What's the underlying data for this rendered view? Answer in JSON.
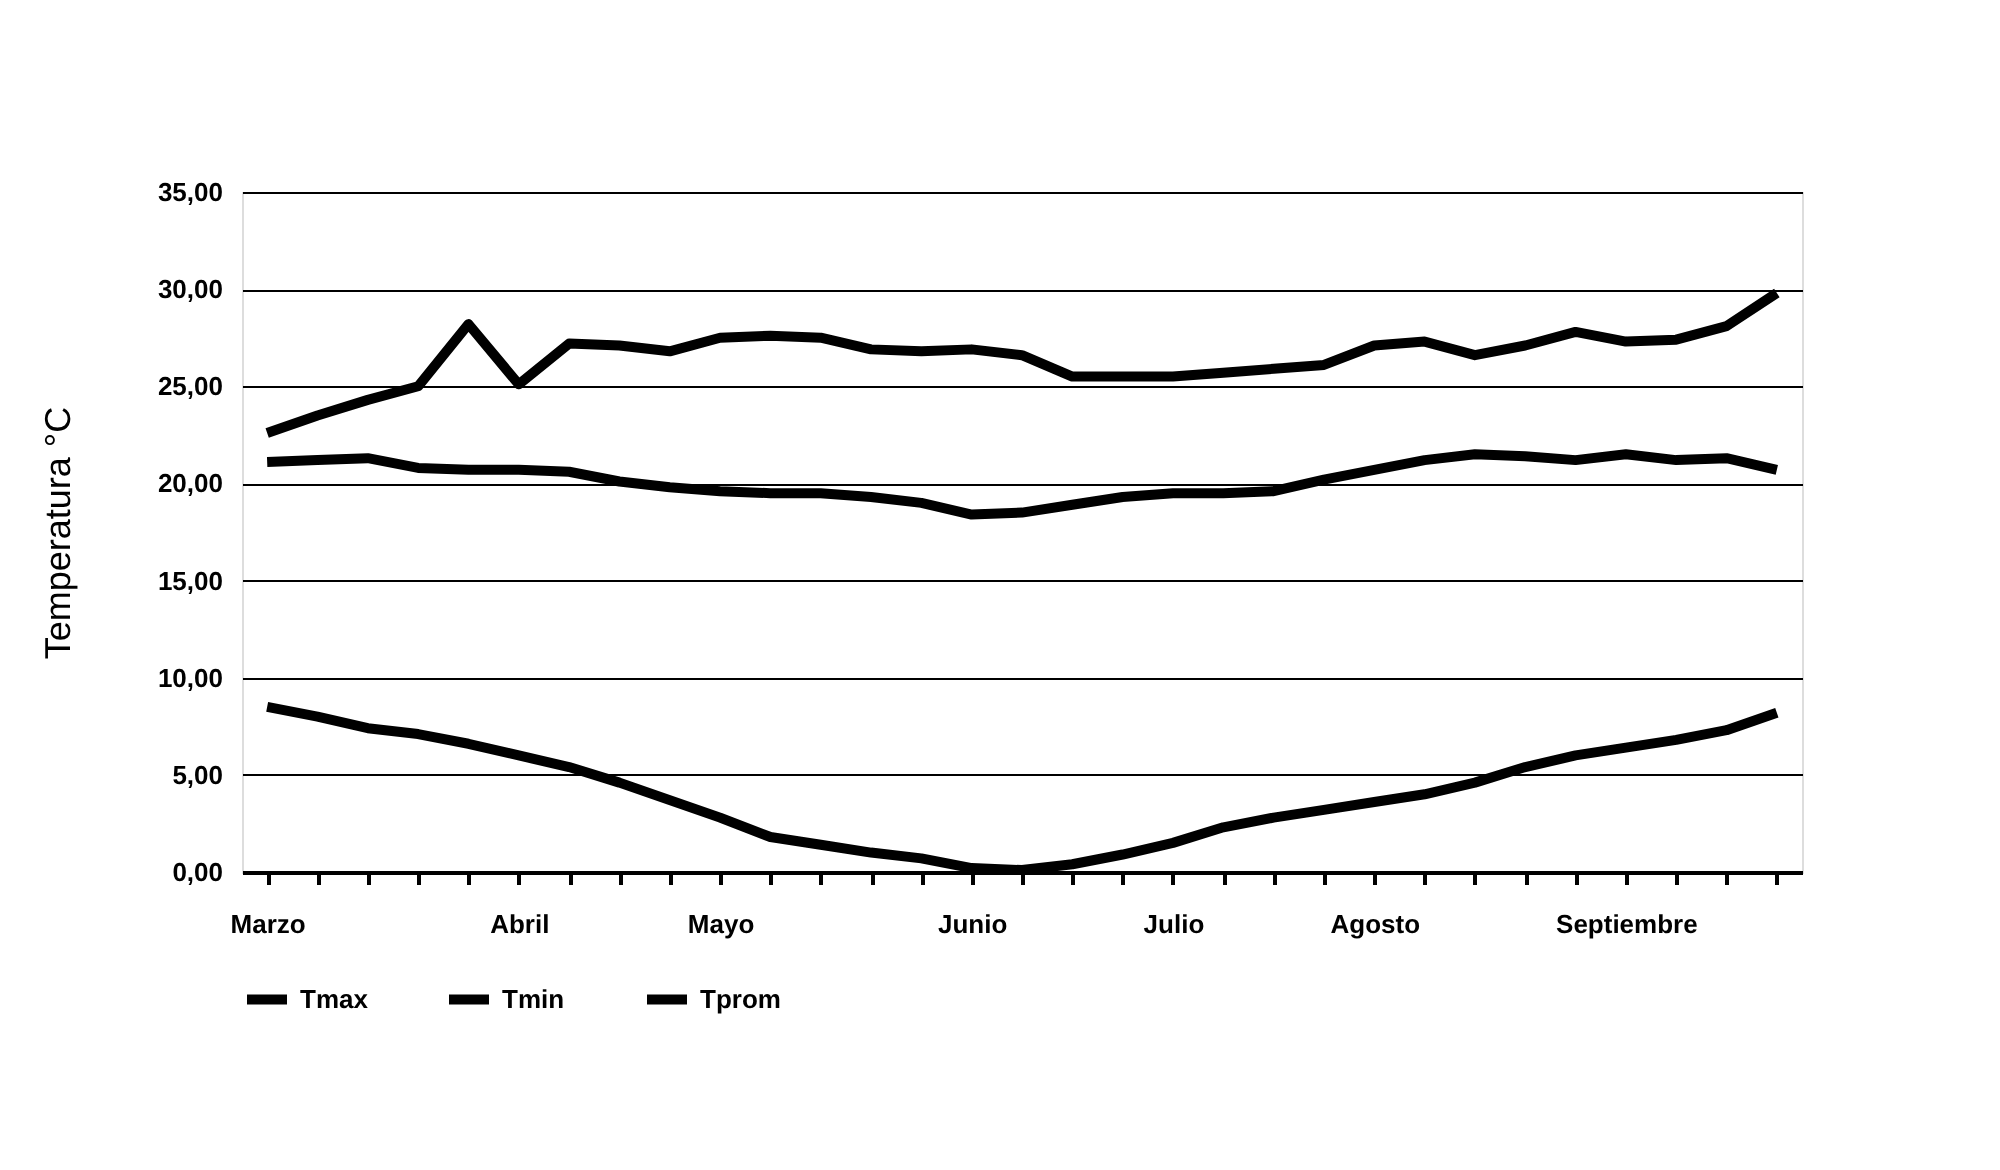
{
  "chart_data": {
    "type": "line",
    "ylabel": "Temperatura °C",
    "categories": [
      "Marzo",
      null,
      null,
      null,
      null,
      "Abril",
      null,
      null,
      null,
      "Mayo",
      null,
      null,
      null,
      null,
      "Junio",
      null,
      null,
      null,
      "Julio",
      null,
      null,
      null,
      "Agosto",
      null,
      null,
      null,
      null,
      "Septiembre",
      null,
      null,
      null
    ],
    "series": [
      {
        "name": "Tmax",
        "color": "#000000",
        "values": [
          22.6,
          23.5,
          24.3,
          25.0,
          28.2,
          25.1,
          27.2,
          27.1,
          26.8,
          27.5,
          27.6,
          27.5,
          26.9,
          26.8,
          26.9,
          26.6,
          25.5,
          25.5,
          25.5,
          25.7,
          25.9,
          26.1,
          27.1,
          27.3,
          26.6,
          27.1,
          27.8,
          27.3,
          27.4,
          28.1,
          29.8
        ]
      },
      {
        "name": "Tmin",
        "color": "#000000",
        "values": [
          8.5,
          8.0,
          7.4,
          7.1,
          6.6,
          6.0,
          5.4,
          4.6,
          3.7,
          2.8,
          1.8,
          1.4,
          1.0,
          0.7,
          0.2,
          0.1,
          0.4,
          0.9,
          1.5,
          2.3,
          2.8,
          3.2,
          3.6,
          4.0,
          4.6,
          5.4,
          6.0,
          6.4,
          6.8,
          7.3,
          8.2
        ]
      },
      {
        "name": "Tprom",
        "color": "#000000",
        "values": [
          21.1,
          21.2,
          21.3,
          20.8,
          20.7,
          20.7,
          20.6,
          20.1,
          19.8,
          19.6,
          19.5,
          19.5,
          19.3,
          19.0,
          18.4,
          18.5,
          18.9,
          19.3,
          19.5,
          19.5,
          19.6,
          20.2,
          20.7,
          21.2,
          21.5,
          21.4,
          21.2,
          21.5,
          21.2,
          21.3,
          20.7
        ]
      }
    ],
    "ylim": [
      0,
      35
    ],
    "yticks": [
      {
        "value": 0,
        "label": "0,00"
      },
      {
        "value": 5,
        "label": "5,00"
      },
      {
        "value": 10,
        "label": "10,00"
      },
      {
        "value": 15,
        "label": "15,00"
      },
      {
        "value": 20,
        "label": "20,00"
      },
      {
        "value": 25,
        "label": "25,00"
      },
      {
        "value": 30,
        "label": "30,00"
      },
      {
        "value": 35,
        "label": "35,00"
      }
    ],
    "grid": "y",
    "legend": "bottom",
    "marker": "none",
    "line_style": "solid"
  }
}
